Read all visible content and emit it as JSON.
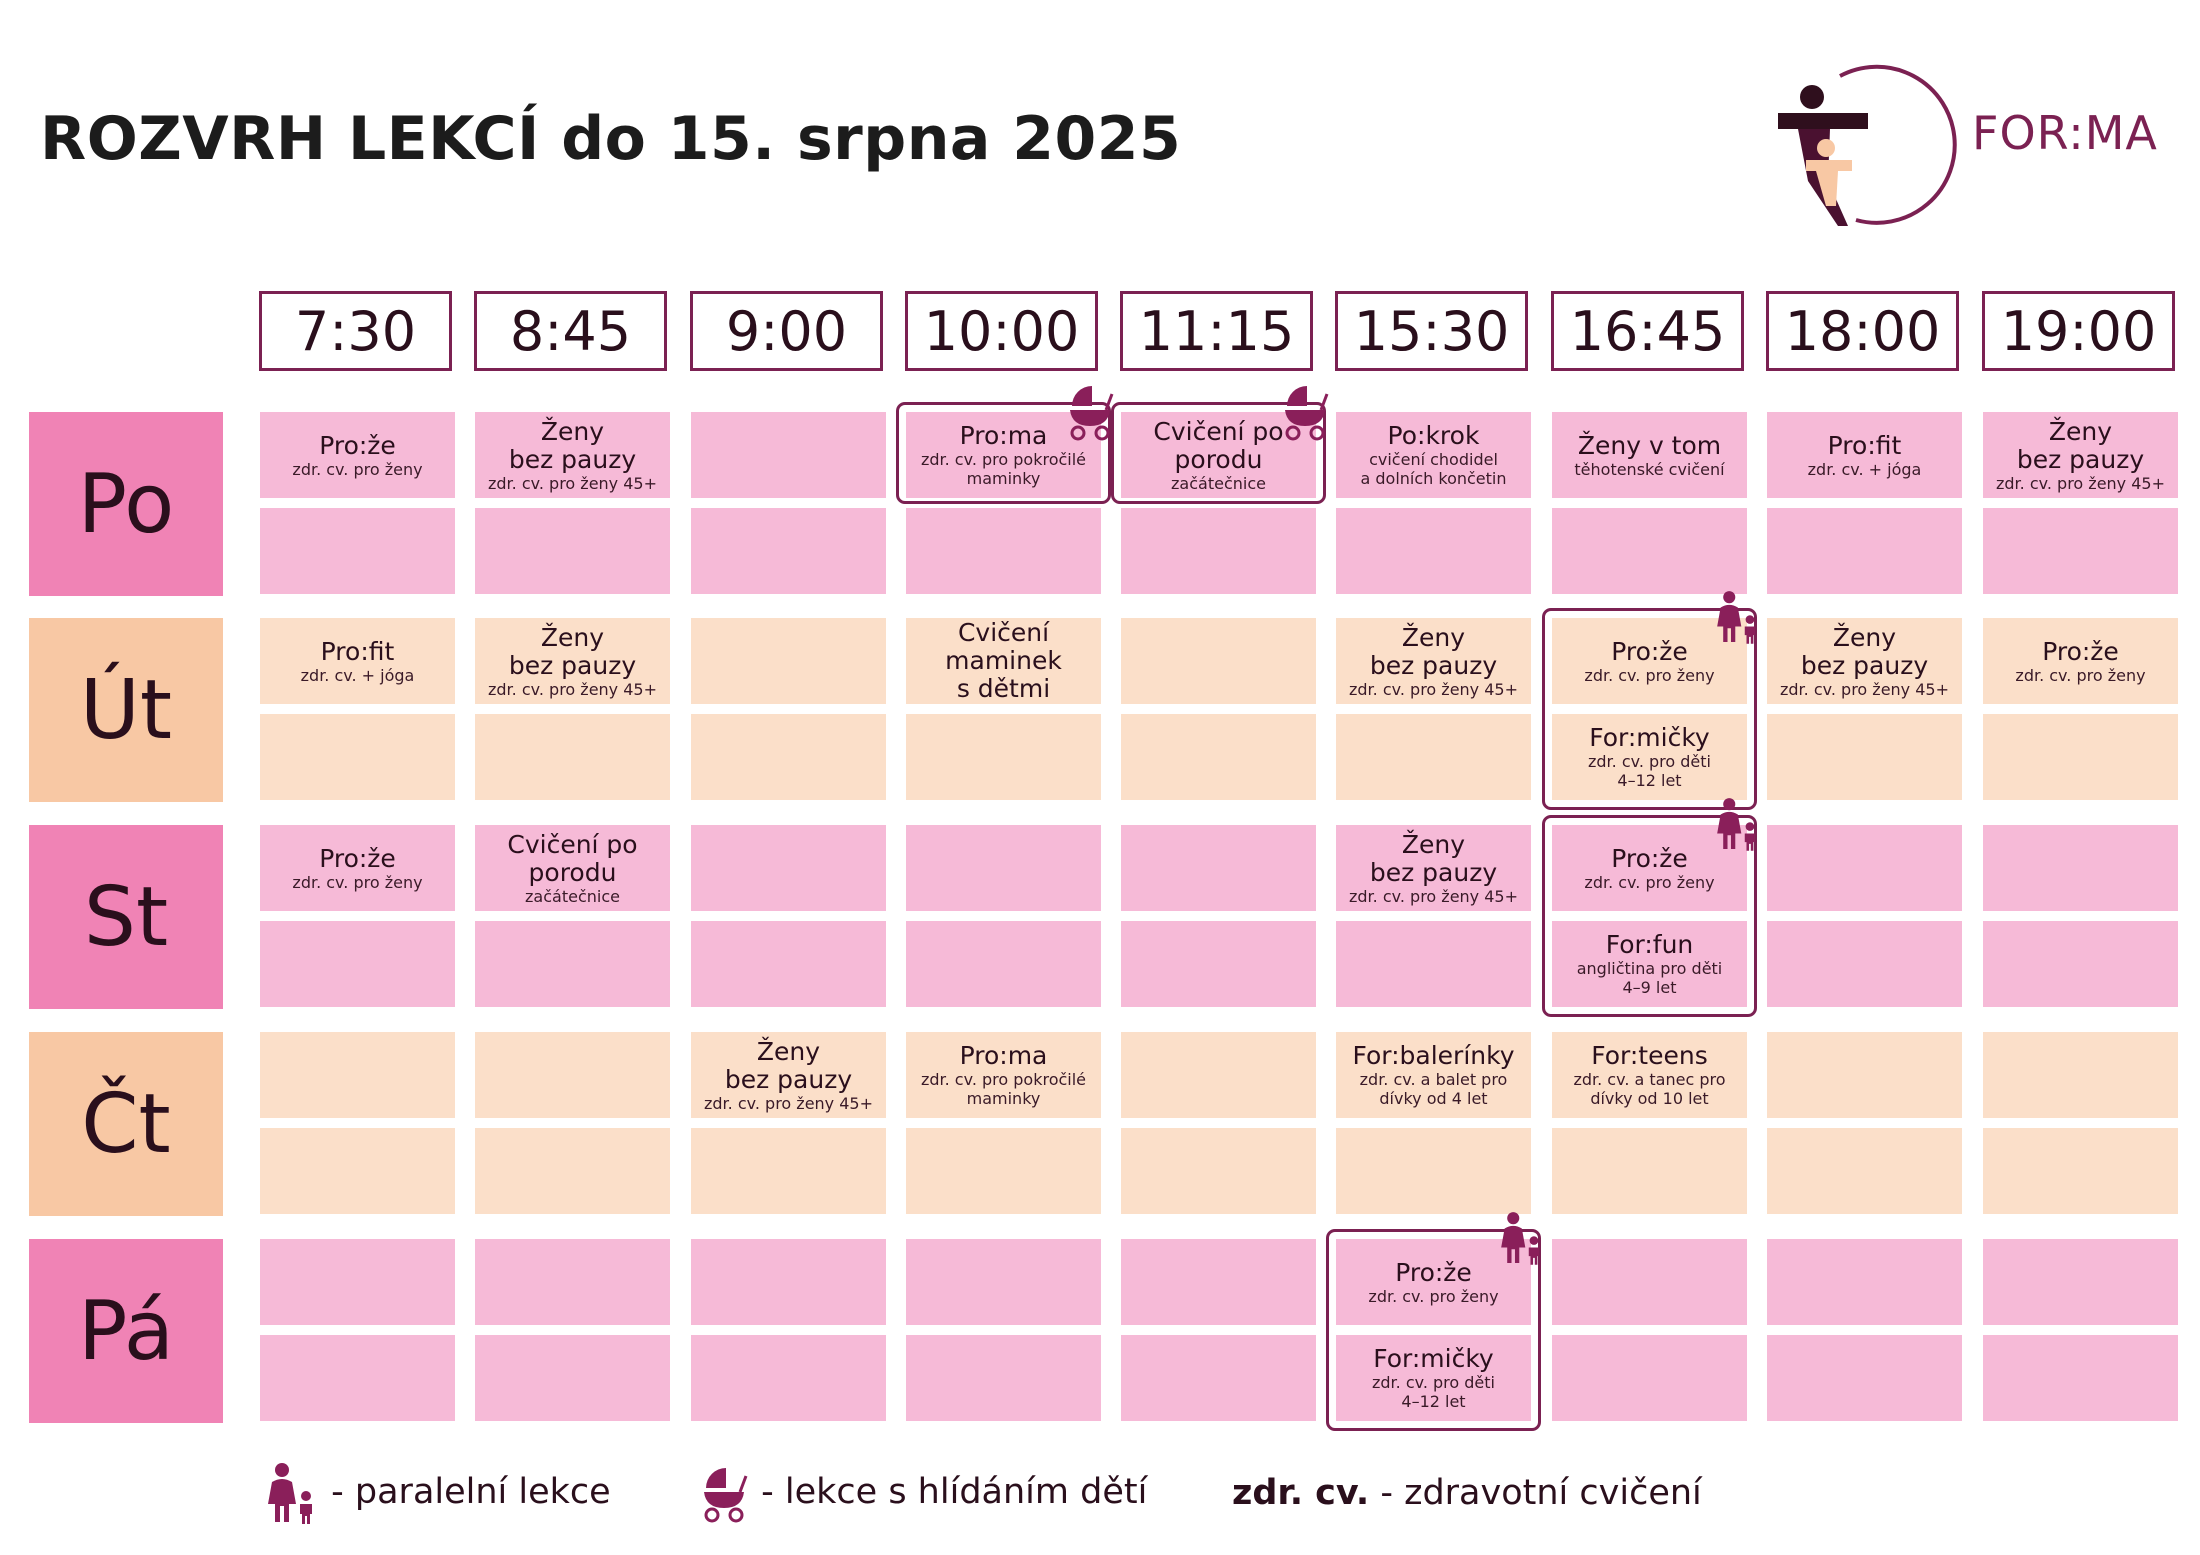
{
  "title": "ROZVRH LEKCÍ do 15. srpna 2025",
  "brand": {
    "name": "FOR:MA",
    "color": "#7b2152"
  },
  "colors": {
    "row_pink": "#f6bad7",
    "row_peach": "#fbdfc9",
    "day_pink": "#f083b5",
    "day_peach": "#f8c8a4"
  },
  "times": [
    "7:30",
    "8:45",
    "9:00",
    "10:00",
    "11:15",
    "15:30",
    "16:45",
    "18:00",
    "19:00"
  ],
  "days": [
    {
      "label": "Po",
      "tone": "pink",
      "slots": [
        [
          {
            "name": "Pro:že",
            "desc": "zdr. cv. pro ženy"
          },
          null
        ],
        [
          {
            "name": "Ženy\nbez pauzy",
            "desc": "zdr. cv. pro ženy 45+"
          },
          null
        ],
        [
          null,
          null
        ],
        [
          {
            "name": "Pro:ma",
            "desc": "zdr. cv. pro pokročilé\nmaminky"
          },
          null
        ],
        [
          {
            "name": "Cvičení po\nporodu",
            "desc": "začátečnice"
          },
          null
        ],
        [
          {
            "name": "Po:krok",
            "desc": "cvičení chodidel\na dolních končetin"
          },
          null
        ],
        [
          {
            "name": "Ženy v tom",
            "desc": "těhotenské cvičení"
          },
          null
        ],
        [
          {
            "name": "Pro:fit",
            "desc": "zdr. cv. + jóga"
          },
          null
        ],
        [
          {
            "name": "Ženy\nbez pauzy",
            "desc": "zdr. cv. pro ženy 45+"
          },
          null
        ]
      ]
    },
    {
      "label": "Út",
      "tone": "peach",
      "slots": [
        [
          {
            "name": "Pro:fit",
            "desc": "zdr. cv. + jóga"
          },
          null
        ],
        [
          {
            "name": "Ženy\nbez pauzy",
            "desc": "zdr. cv. pro ženy 45+"
          },
          null
        ],
        [
          null,
          null
        ],
        [
          {
            "name": "Cvičení\nmaminek\ns dětmi",
            "desc": ""
          },
          null
        ],
        [
          null,
          null
        ],
        [
          {
            "name": "Ženy\nbez pauzy",
            "desc": "zdr. cv. pro ženy 45+"
          },
          null
        ],
        [
          {
            "name": "Pro:že",
            "desc": "zdr. cv. pro ženy"
          },
          {
            "name": "For:mičky",
            "desc": "zdr. cv. pro děti\n4–12 let"
          }
        ],
        [
          {
            "name": "Ženy\nbez pauzy",
            "desc": "zdr. cv. pro ženy 45+"
          },
          null
        ],
        [
          {
            "name": "Pro:že",
            "desc": "zdr. cv. pro ženy"
          },
          null
        ]
      ]
    },
    {
      "label": "St",
      "tone": "pink",
      "slots": [
        [
          {
            "name": "Pro:že",
            "desc": "zdr. cv. pro ženy"
          },
          null
        ],
        [
          {
            "name": "Cvičení po\nporodu",
            "desc": "začátečnice"
          },
          null
        ],
        [
          null,
          null
        ],
        [
          null,
          null
        ],
        [
          null,
          null
        ],
        [
          {
            "name": "Ženy\nbez pauzy",
            "desc": "zdr. cv. pro ženy 45+"
          },
          null
        ],
        [
          {
            "name": "Pro:že",
            "desc": "zdr. cv. pro ženy"
          },
          {
            "name": "For:fun",
            "desc": "angličtina pro děti\n4–9 let"
          }
        ],
        [
          null,
          null
        ],
        [
          null,
          null
        ]
      ]
    },
    {
      "label": "Čt",
      "tone": "peach",
      "slots": [
        [
          null,
          null
        ],
        [
          null,
          null
        ],
        [
          {
            "name": "Ženy\nbez pauzy",
            "desc": "zdr. cv. pro ženy 45+"
          },
          null
        ],
        [
          {
            "name": "Pro:ma",
            "desc": "zdr. cv. pro pokročilé\nmaminky"
          },
          null
        ],
        [
          null,
          null
        ],
        [
          {
            "name": "For:balerínky",
            "desc": "zdr. cv. a balet pro\ndívky od 4 let"
          },
          null
        ],
        [
          {
            "name": "For:teens",
            "desc": "zdr. cv. a tanec pro\ndívky od 10 let"
          },
          null
        ],
        [
          null,
          null
        ],
        [
          null,
          null
        ]
      ]
    },
    {
      "label": "Pá",
      "tone": "pink",
      "slots": [
        [
          null,
          null
        ],
        [
          null,
          null
        ],
        [
          null,
          null
        ],
        [
          null,
          null
        ],
        [
          null,
          null
        ],
        [
          {
            "name": "Pro:že",
            "desc": "zdr. cv. pro ženy"
          },
          {
            "name": "For:mičky",
            "desc": "zdr. cv. pro děti\n4–12 let"
          }
        ],
        [
          null,
          null
        ],
        [
          null,
          null
        ],
        [
          null,
          null
        ]
      ]
    }
  ],
  "badges": [
    {
      "day": 0,
      "time": 3,
      "icon": "stroller-icon"
    },
    {
      "day": 0,
      "time": 4,
      "icon": "stroller-icon"
    },
    {
      "day": 1,
      "time": 6,
      "icon": "parent-child-icon"
    },
    {
      "day": 2,
      "time": 6,
      "icon": "parent-child-icon"
    },
    {
      "day": 4,
      "time": 5,
      "icon": "parent-child-icon"
    }
  ],
  "legend": {
    "parallel": "- paralelní lekce",
    "childcare": "- lekce s hlídáním dětí",
    "abbr": "zdr. cv.",
    "abbr_desc": "- zdravotní cvičení"
  }
}
